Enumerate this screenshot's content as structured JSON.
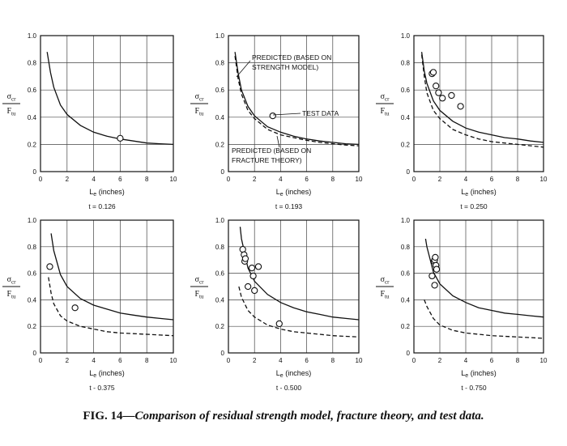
{
  "chart_data": [
    {
      "type": "line",
      "xlabel": "L",
      "xlabel_sub": "e",
      "xlabel_unit": " (inches)",
      "ylabel_top": "σ",
      "ylabel_top_sub": "cr",
      "ylabel_bottom": "F",
      "ylabel_bottom_sub": "tu",
      "xlim": [
        0,
        10
      ],
      "ylim": [
        0,
        1.0
      ],
      "xticks": [
        "0",
        "2",
        "4",
        "6",
        "8",
        "10"
      ],
      "yticks": [
        "0",
        "0.2",
        "0.4",
        "0.6",
        "0.8",
        "1.0"
      ],
      "grid": true,
      "thickness_label": "t = 0.126",
      "series": [
        {
          "style": "solid",
          "x": [
            0.5,
            0.75,
            1.0,
            1.5,
            2,
            3,
            4,
            5,
            6,
            7,
            8,
            9,
            10
          ],
          "y": [
            0.88,
            0.73,
            0.62,
            0.49,
            0.42,
            0.34,
            0.29,
            0.26,
            0.24,
            0.225,
            0.21,
            0.205,
            0.2
          ]
        },
        {
          "style": "points",
          "x": [
            6.0
          ],
          "y": [
            0.245
          ]
        }
      ],
      "annotations": []
    },
    {
      "type": "line",
      "xlabel": "L",
      "xlabel_sub": "e",
      "xlabel_unit": " (inches)",
      "ylabel_top": "σ",
      "ylabel_top_sub": "cr",
      "ylabel_bottom": "F",
      "ylabel_bottom_sub": "tu",
      "xlim": [
        0,
        10
      ],
      "ylim": [
        0,
        1.0
      ],
      "xticks": [
        "0",
        "2",
        "4",
        "6",
        "8",
        "10"
      ],
      "yticks": [
        "0",
        "0.2",
        "0.4",
        "0.6",
        "0.8",
        "1.0"
      ],
      "grid": true,
      "thickness_label": "t = 0.193",
      "series": [
        {
          "style": "solid",
          "x": [
            0.5,
            0.75,
            1.0,
            1.5,
            2,
            3,
            4,
            5,
            6,
            7,
            8,
            9,
            10
          ],
          "y": [
            0.88,
            0.72,
            0.6,
            0.48,
            0.41,
            0.33,
            0.29,
            0.26,
            0.24,
            0.225,
            0.215,
            0.205,
            0.2
          ]
        },
        {
          "style": "dashed",
          "x": [
            0.5,
            0.75,
            1.0,
            1.5,
            2,
            3,
            4,
            5,
            6,
            7,
            8,
            9,
            10
          ],
          "y": [
            0.85,
            0.68,
            0.57,
            0.45,
            0.39,
            0.31,
            0.27,
            0.25,
            0.23,
            0.215,
            0.205,
            0.195,
            0.19
          ]
        },
        {
          "style": "points",
          "x": [
            3.4
          ],
          "y": [
            0.41
          ]
        }
      ],
      "annotations": [
        {
          "lines": [
            "PREDICTED (BASED ON",
            "STRENGTH MODEL)"
          ]
        },
        {
          "lines": [
            "TEST DATA"
          ]
        },
        {
          "lines": [
            "PREDICTED (BASED ON",
            "FRACTURE THEORY)"
          ]
        }
      ]
    },
    {
      "type": "line",
      "xlabel": "L",
      "xlabel_sub": "e",
      "xlabel_unit": " (inches)",
      "ylabel_top": "σ",
      "ylabel_top_sub": "cr",
      "ylabel_bottom": "F",
      "ylabel_bottom_sub": "tu",
      "xlim": [
        0,
        10
      ],
      "ylim": [
        0,
        1.0
      ],
      "xticks": [
        "0",
        "2",
        "4",
        "6",
        "8",
        "10"
      ],
      "yticks": [
        "0",
        "0.2",
        "0.4",
        "0.6",
        "0.8",
        "1.0"
      ],
      "grid": true,
      "thickness_label": "t = 0.250",
      "series": [
        {
          "style": "solid",
          "x": [
            0.6,
            0.8,
            1.0,
            1.5,
            2,
            3,
            4,
            5,
            6,
            7,
            8,
            9,
            10
          ],
          "y": [
            0.88,
            0.74,
            0.65,
            0.52,
            0.45,
            0.37,
            0.32,
            0.29,
            0.27,
            0.25,
            0.24,
            0.225,
            0.215
          ]
        },
        {
          "style": "dashed",
          "x": [
            0.6,
            0.8,
            1.0,
            1.5,
            2,
            3,
            4,
            5,
            6,
            7,
            8,
            9,
            10
          ],
          "y": [
            0.86,
            0.7,
            0.58,
            0.45,
            0.39,
            0.31,
            0.27,
            0.24,
            0.22,
            0.21,
            0.2,
            0.19,
            0.18
          ]
        },
        {
          "style": "points",
          "x": [
            1.4,
            1.5,
            1.7,
            1.9,
            2.2,
            2.9,
            3.6
          ],
          "y": [
            0.72,
            0.73,
            0.63,
            0.58,
            0.54,
            0.56,
            0.48
          ]
        }
      ],
      "annotations": []
    },
    {
      "type": "line",
      "xlabel": "L",
      "xlabel_sub": "e",
      "xlabel_unit": " (inches)",
      "ylabel_top": "σ",
      "ylabel_top_sub": "cr",
      "ylabel_bottom": "F",
      "ylabel_bottom_sub": "tu",
      "xlim": [
        0,
        10
      ],
      "ylim": [
        0,
        1.0
      ],
      "xticks": [
        "0",
        "2",
        "4",
        "6",
        "8",
        "10"
      ],
      "yticks": [
        "0",
        "0.2",
        "0.4",
        "0.6",
        "0.8",
        "1.0"
      ],
      "grid": true,
      "thickness_label": "t - 0.375",
      "series": [
        {
          "style": "solid",
          "x": [
            0.8,
            1.0,
            1.5,
            2,
            3,
            4,
            5,
            6,
            7,
            8,
            9,
            10
          ],
          "y": [
            0.9,
            0.77,
            0.59,
            0.5,
            0.41,
            0.36,
            0.33,
            0.3,
            0.285,
            0.27,
            0.26,
            0.25
          ]
        },
        {
          "style": "dashed",
          "x": [
            0.6,
            0.8,
            1.0,
            1.5,
            2,
            3,
            4,
            5,
            6,
            7,
            8,
            9,
            10
          ],
          "y": [
            0.57,
            0.45,
            0.37,
            0.28,
            0.24,
            0.2,
            0.18,
            0.16,
            0.15,
            0.145,
            0.14,
            0.135,
            0.13
          ]
        },
        {
          "style": "points",
          "x": [
            0.7,
            2.6
          ],
          "y": [
            0.65,
            0.34
          ]
        }
      ],
      "annotations": []
    },
    {
      "type": "line",
      "xlabel": "L",
      "xlabel_sub": "e",
      "xlabel_unit": " (inches)",
      "ylabel_top": "σ",
      "ylabel_top_sub": "cr",
      "ylabel_bottom": "F",
      "ylabel_bottom_sub": "tu",
      "xlim": [
        0,
        10
      ],
      "ylim": [
        0,
        1.0
      ],
      "xticks": [
        "0",
        "2",
        "4",
        "6",
        "8",
        "10"
      ],
      "yticks": [
        "0",
        "0.2",
        "0.4",
        "0.6",
        "0.8",
        "1.0"
      ],
      "grid": true,
      "thickness_label": "t - 0.500",
      "series": [
        {
          "style": "solid",
          "x": [
            0.9,
            1.0,
            1.5,
            2,
            3,
            4,
            5,
            6,
            7,
            8,
            9,
            10
          ],
          "y": [
            0.95,
            0.86,
            0.64,
            0.54,
            0.44,
            0.38,
            0.34,
            0.31,
            0.29,
            0.27,
            0.26,
            0.25
          ]
        },
        {
          "style": "dashed",
          "x": [
            0.8,
            1.0,
            1.5,
            2,
            3,
            4,
            5,
            6,
            7,
            8,
            9,
            10
          ],
          "y": [
            0.5,
            0.42,
            0.32,
            0.27,
            0.21,
            0.18,
            0.16,
            0.15,
            0.14,
            0.13,
            0.125,
            0.12
          ]
        },
        {
          "style": "points",
          "x": [
            1.1,
            1.2,
            1.25,
            1.3,
            1.5,
            1.8,
            1.9,
            2.0,
            2.3,
            3.9
          ],
          "y": [
            0.78,
            0.74,
            0.69,
            0.71,
            0.5,
            0.64,
            0.58,
            0.47,
            0.65,
            0.22
          ]
        }
      ],
      "annotations": []
    },
    {
      "type": "line",
      "xlabel": "L",
      "xlabel_sub": "e",
      "xlabel_unit": " (inches)",
      "ylabel_top": "σ",
      "ylabel_top_sub": "cr",
      "ylabel_bottom": "F",
      "ylabel_bottom_sub": "tu",
      "xlim": [
        0,
        10
      ],
      "ylim": [
        0,
        1.0
      ],
      "xticks": [
        "0",
        "2",
        "4",
        "6",
        "8",
        "10"
      ],
      "yticks": [
        "0",
        "0.2",
        "0.4",
        "0.6",
        "0.8",
        "1.0"
      ],
      "grid": true,
      "thickness_label": "t - 0.750",
      "series": [
        {
          "style": "solid",
          "x": [
            0.9,
            1.0,
            1.5,
            2,
            3,
            4,
            5,
            6,
            7,
            8,
            9,
            10
          ],
          "y": [
            0.86,
            0.8,
            0.61,
            0.52,
            0.43,
            0.38,
            0.34,
            0.32,
            0.3,
            0.29,
            0.28,
            0.27
          ]
        },
        {
          "style": "dashed",
          "x": [
            0.8,
            1.0,
            1.5,
            2,
            3,
            4,
            5,
            6,
            7,
            8,
            9,
            10
          ],
          "y": [
            0.4,
            0.35,
            0.26,
            0.21,
            0.17,
            0.15,
            0.14,
            0.13,
            0.125,
            0.12,
            0.115,
            0.11
          ]
        },
        {
          "style": "points",
          "x": [
            1.4,
            1.55,
            1.6,
            1.65,
            1.7,
            1.75,
            1.6
          ],
          "y": [
            0.58,
            0.69,
            0.7,
            0.72,
            0.66,
            0.63,
            0.51
          ]
        }
      ],
      "annotations": []
    }
  ],
  "caption": {
    "fig": "FIG. 14—",
    "text": "Comparison of residual strength model, fracture theory, and test data."
  }
}
